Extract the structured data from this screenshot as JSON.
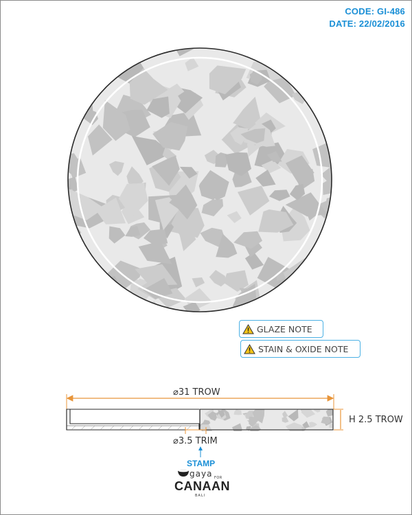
{
  "header": {
    "code": "CODE: GI-486",
    "date": "DATE: 22/02/2016"
  },
  "notes": [
    {
      "label": "GLAZE NOTE",
      "icon": "warning-icon"
    },
    {
      "label": "STAIN & OXIDE NOTE",
      "icon": "warning-icon"
    }
  ],
  "dimensions": {
    "diameter": "⌀31 TROW",
    "height": "H 2.5 TROW",
    "trim": "⌀3.5 TRIM"
  },
  "stamp": {
    "label": "STAMP",
    "logo_text": "gaya",
    "logo_for": "FOR",
    "logo_brand": "CANAAN",
    "logo_sub": "BALI"
  },
  "colors": {
    "accent_blue": "#1a8fd6",
    "note_border": "#4ab0e4",
    "dimension_orange": "#e8953a",
    "plate_fill": "#e9e9e9",
    "chip_dark": "#bdbdbd",
    "outline": "#2a2a2a"
  }
}
